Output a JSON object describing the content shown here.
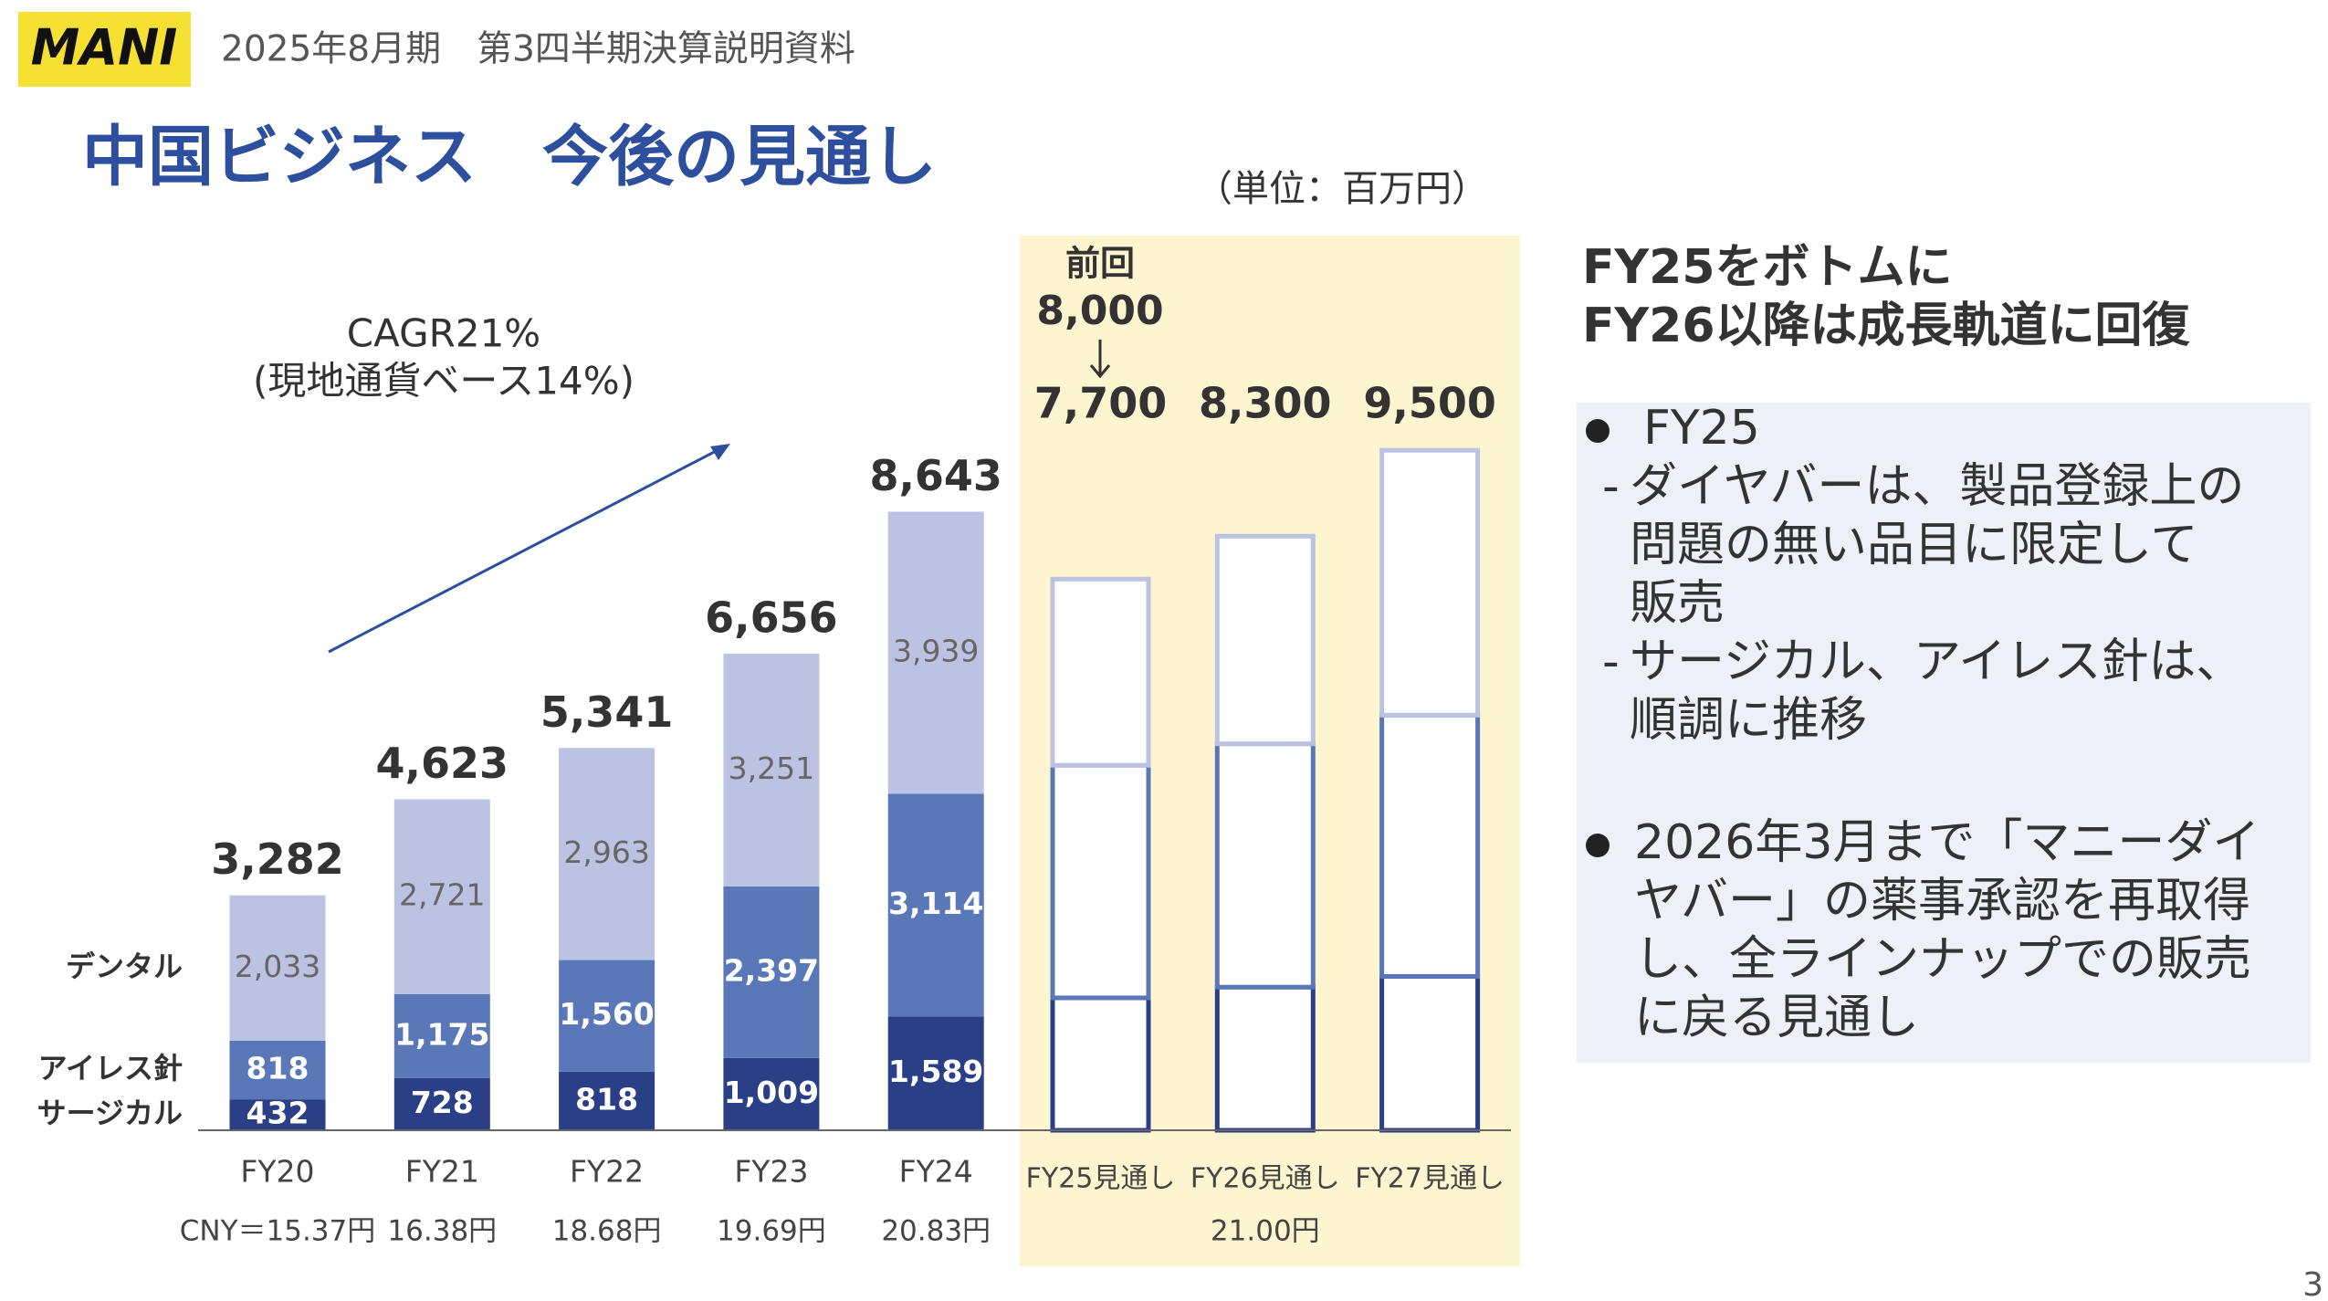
{
  "header": {
    "logo": "MANI",
    "subtitle": "2025年8月期　第3四半期決算説明資料",
    "title": "中国ビジネス　今後の見通し",
    "page": "3"
  },
  "chart_data": {
    "type": "bar",
    "stacked": true,
    "unit": "（単位：百万円）",
    "categories": [
      "FY20",
      "FY21",
      "FY22",
      "FY23",
      "FY24",
      "FY25見通し",
      "FY26見通し",
      "FY27見通し"
    ],
    "series": [
      {
        "name": "サージカル",
        "color": "#2b3f86",
        "values": [
          432,
          728,
          818,
          1009,
          1589,
          1850,
          2000,
          2150
        ],
        "value_labels": [
          "432",
          "728",
          "818",
          "1,009",
          "1,589",
          null,
          null,
          null
        ]
      },
      {
        "name": "アイレス針",
        "color": "#5a78b8",
        "values": [
          818,
          1175,
          1560,
          2397,
          3114,
          3250,
          3400,
          3650
        ],
        "value_labels": [
          "818",
          "1,175",
          "1,560",
          "2,397",
          "3,114",
          null,
          null,
          null
        ]
      },
      {
        "name": "デンタル",
        "color": "#bcc3e2",
        "values": [
          2033,
          2721,
          2963,
          3251,
          3939,
          2600,
          2900,
          3700
        ],
        "value_labels": [
          "2,033",
          "2,721",
          "2,963",
          "3,251",
          "3,939",
          null,
          null,
          null
        ]
      }
    ],
    "totals": [
      3282,
      4623,
      5341,
      6656,
      8643,
      7700,
      8300,
      9500
    ],
    "total_labels": [
      "3,282",
      "4,623",
      "5,341",
      "6,656",
      "8,643",
      "7,700",
      "8,300",
      "9,500"
    ],
    "ylim": [
      0,
      10000
    ],
    "annotations": {
      "cagr": [
        "CAGR21%",
        "(現地通貨ベース14%)"
      ],
      "previous": [
        "前回",
        "8,000"
      ]
    },
    "exchange_rates": [
      "CNY＝15.37円",
      "16.38円",
      "18.68円",
      "19.69円",
      "20.83円",
      "21.00円"
    ]
  },
  "panel": {
    "heading": [
      "FY25をボトムに",
      "FY26以降は成長軌道に回復"
    ],
    "bullets": [
      {
        "title": "FY25",
        "items": [
          [
            "ダイヤバーは、製品登録上の",
            "問題の無い品目に限定して",
            "販売"
          ],
          [
            "サージカル、アイレス針は、",
            "順調に推移"
          ]
        ]
      },
      {
        "lines": [
          "2026年3月まで「マニーダイ",
          "ヤバー」の薬事承認を再取得",
          "し、全ラインナップでの販売",
          "に戻る見通し"
        ]
      }
    ]
  }
}
